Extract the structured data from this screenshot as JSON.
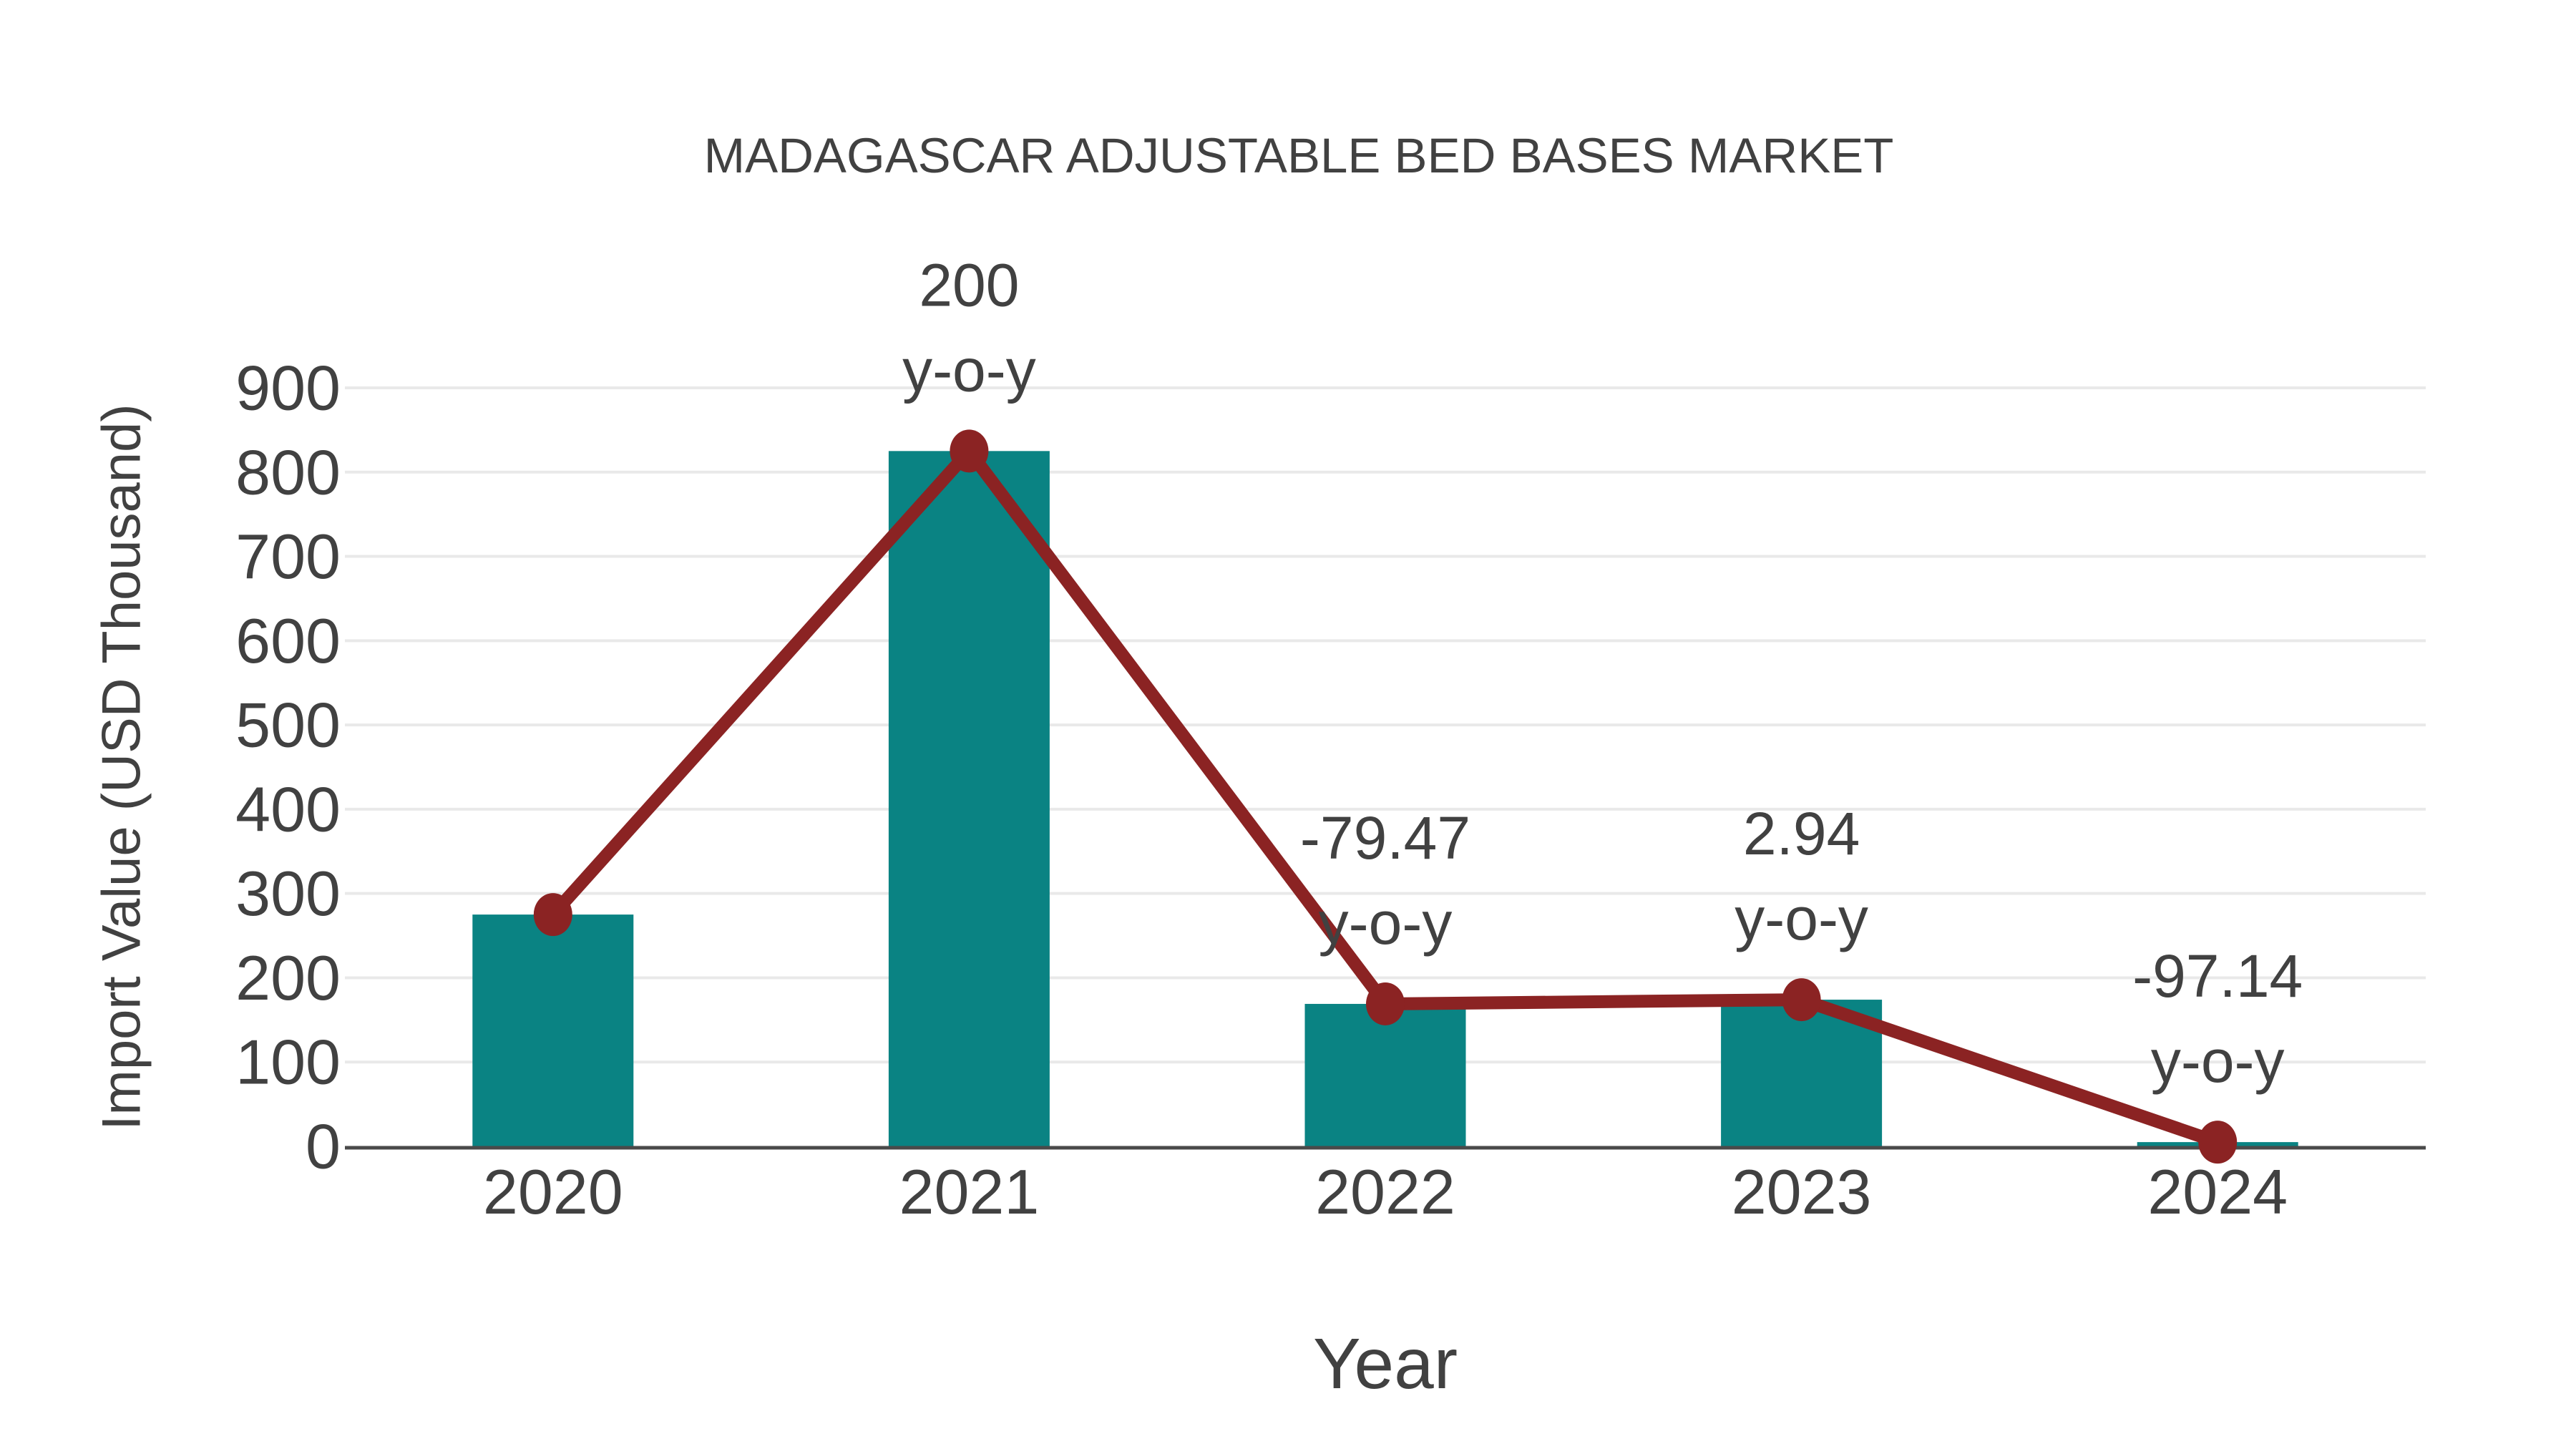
{
  "figure": {
    "background_color": "#FFFFFF"
  },
  "chart_data": {
    "type": "bar",
    "title": "MADAGASCAR ADJUSTABLE BED BASES MARKET",
    "xlabel": "Year",
    "ylabel": "Import Value (USD Thousand)",
    "categories": [
      "2020",
      "2021",
      "2022",
      "2023",
      "2024"
    ],
    "series": [
      {
        "name": "import-value-bars",
        "type": "bar",
        "values": [
          275,
          825,
          169,
          174,
          5
        ]
      },
      {
        "name": "import-value-trend-line",
        "type": "line",
        "values": [
          275,
          825,
          169,
          174,
          5
        ]
      }
    ],
    "annotations": [
      {
        "category": "2021",
        "value_label": "200",
        "suffix_label": "y-o-y",
        "yoy_percent": 200
      },
      {
        "category": "2022",
        "value_label": "-79.47",
        "suffix_label": "y-o-y",
        "yoy_percent": -79.47
      },
      {
        "category": "2023",
        "value_label": "2.94",
        "suffix_label": "y-o-y",
        "yoy_percent": 2.94
      },
      {
        "category": "2024",
        "value_label": "-97.14",
        "suffix_label": "y-o-y",
        "yoy_percent": -97.14
      }
    ],
    "ylim": [
      0,
      900
    ],
    "ytick_step": 100,
    "ytick_labels": [
      "0",
      "100",
      "200",
      "300",
      "400",
      "500",
      "600",
      "700",
      "800",
      "900"
    ],
    "grid": true,
    "legend": "none",
    "colors": {
      "bar": "#0A8383",
      "line": "#8B2323",
      "marker": "#8B2323",
      "text": "#414141",
      "grid": "#E9E9E9",
      "axis": "#4A4A4A",
      "background": "#FFFFFF"
    }
  }
}
